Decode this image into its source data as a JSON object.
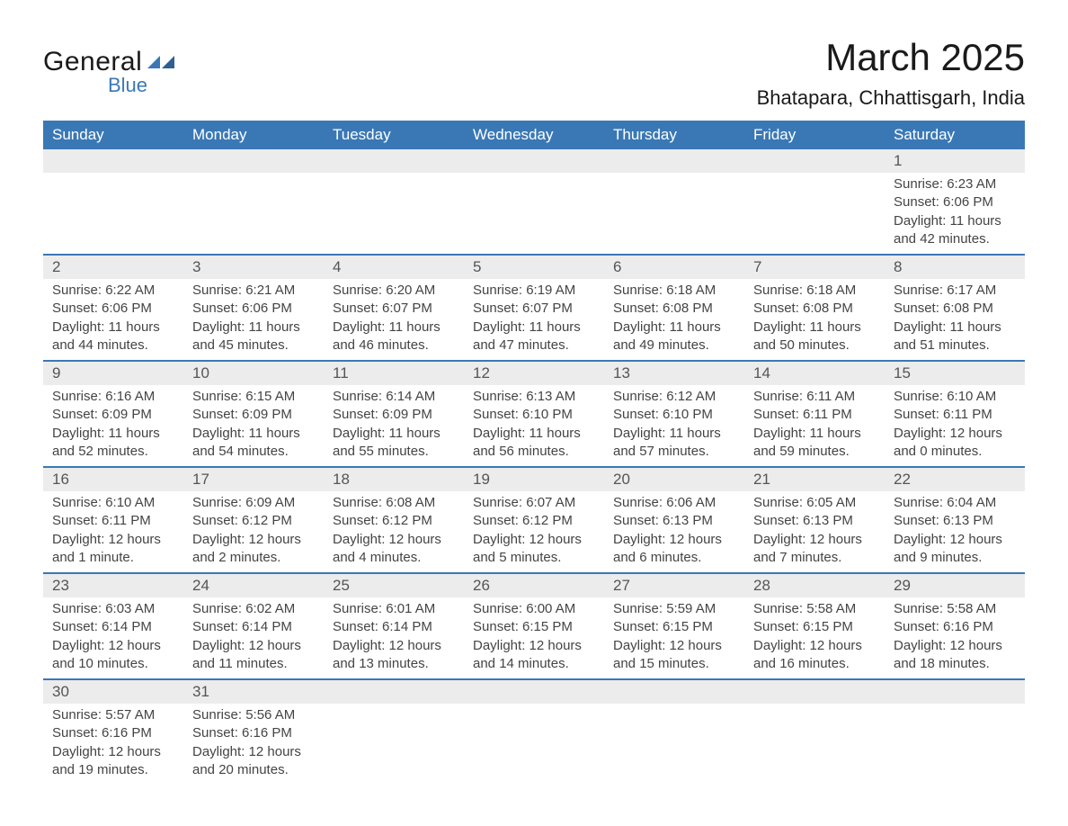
{
  "logo": {
    "text1": "General",
    "text2": "Blue"
  },
  "title": "March 2025",
  "location": "Bhatapara, Chhattisgarh, India",
  "colors": {
    "header_bg": "#3a78b5",
    "header_text": "#ffffff",
    "daynum_bg": "#ececec",
    "text": "#444444"
  },
  "weekdays": [
    "Sunday",
    "Monday",
    "Tuesday",
    "Wednesday",
    "Thursday",
    "Friday",
    "Saturday"
  ],
  "labels": {
    "sunrise": "Sunrise:",
    "sunset": "Sunset:",
    "daylight": "Daylight:"
  },
  "weeks": [
    [
      null,
      null,
      null,
      null,
      null,
      null,
      {
        "d": "1",
        "sunrise": "6:23 AM",
        "sunset": "6:06 PM",
        "daylight": "11 hours and 42 minutes."
      }
    ],
    [
      {
        "d": "2",
        "sunrise": "6:22 AM",
        "sunset": "6:06 PM",
        "daylight": "11 hours and 44 minutes."
      },
      {
        "d": "3",
        "sunrise": "6:21 AM",
        "sunset": "6:06 PM",
        "daylight": "11 hours and 45 minutes."
      },
      {
        "d": "4",
        "sunrise": "6:20 AM",
        "sunset": "6:07 PM",
        "daylight": "11 hours and 46 minutes."
      },
      {
        "d": "5",
        "sunrise": "6:19 AM",
        "sunset": "6:07 PM",
        "daylight": "11 hours and 47 minutes."
      },
      {
        "d": "6",
        "sunrise": "6:18 AM",
        "sunset": "6:08 PM",
        "daylight": "11 hours and 49 minutes."
      },
      {
        "d": "7",
        "sunrise": "6:18 AM",
        "sunset": "6:08 PM",
        "daylight": "11 hours and 50 minutes."
      },
      {
        "d": "8",
        "sunrise": "6:17 AM",
        "sunset": "6:08 PM",
        "daylight": "11 hours and 51 minutes."
      }
    ],
    [
      {
        "d": "9",
        "sunrise": "6:16 AM",
        "sunset": "6:09 PM",
        "daylight": "11 hours and 52 minutes."
      },
      {
        "d": "10",
        "sunrise": "6:15 AM",
        "sunset": "6:09 PM",
        "daylight": "11 hours and 54 minutes."
      },
      {
        "d": "11",
        "sunrise": "6:14 AM",
        "sunset": "6:09 PM",
        "daylight": "11 hours and 55 minutes."
      },
      {
        "d": "12",
        "sunrise": "6:13 AM",
        "sunset": "6:10 PM",
        "daylight": "11 hours and 56 minutes."
      },
      {
        "d": "13",
        "sunrise": "6:12 AM",
        "sunset": "6:10 PM",
        "daylight": "11 hours and 57 minutes."
      },
      {
        "d": "14",
        "sunrise": "6:11 AM",
        "sunset": "6:11 PM",
        "daylight": "11 hours and 59 minutes."
      },
      {
        "d": "15",
        "sunrise": "6:10 AM",
        "sunset": "6:11 PM",
        "daylight": "12 hours and 0 minutes."
      }
    ],
    [
      {
        "d": "16",
        "sunrise": "6:10 AM",
        "sunset": "6:11 PM",
        "daylight": "12 hours and 1 minute."
      },
      {
        "d": "17",
        "sunrise": "6:09 AM",
        "sunset": "6:12 PM",
        "daylight": "12 hours and 2 minutes."
      },
      {
        "d": "18",
        "sunrise": "6:08 AM",
        "sunset": "6:12 PM",
        "daylight": "12 hours and 4 minutes."
      },
      {
        "d": "19",
        "sunrise": "6:07 AM",
        "sunset": "6:12 PM",
        "daylight": "12 hours and 5 minutes."
      },
      {
        "d": "20",
        "sunrise": "6:06 AM",
        "sunset": "6:13 PM",
        "daylight": "12 hours and 6 minutes."
      },
      {
        "d": "21",
        "sunrise": "6:05 AM",
        "sunset": "6:13 PM",
        "daylight": "12 hours and 7 minutes."
      },
      {
        "d": "22",
        "sunrise": "6:04 AM",
        "sunset": "6:13 PM",
        "daylight": "12 hours and 9 minutes."
      }
    ],
    [
      {
        "d": "23",
        "sunrise": "6:03 AM",
        "sunset": "6:14 PM",
        "daylight": "12 hours and 10 minutes."
      },
      {
        "d": "24",
        "sunrise": "6:02 AM",
        "sunset": "6:14 PM",
        "daylight": "12 hours and 11 minutes."
      },
      {
        "d": "25",
        "sunrise": "6:01 AM",
        "sunset": "6:14 PM",
        "daylight": "12 hours and 13 minutes."
      },
      {
        "d": "26",
        "sunrise": "6:00 AM",
        "sunset": "6:15 PM",
        "daylight": "12 hours and 14 minutes."
      },
      {
        "d": "27",
        "sunrise": "5:59 AM",
        "sunset": "6:15 PM",
        "daylight": "12 hours and 15 minutes."
      },
      {
        "d": "28",
        "sunrise": "5:58 AM",
        "sunset": "6:15 PM",
        "daylight": "12 hours and 16 minutes."
      },
      {
        "d": "29",
        "sunrise": "5:58 AM",
        "sunset": "6:16 PM",
        "daylight": "12 hours and 18 minutes."
      }
    ],
    [
      {
        "d": "30",
        "sunrise": "5:57 AM",
        "sunset": "6:16 PM",
        "daylight": "12 hours and 19 minutes."
      },
      {
        "d": "31",
        "sunrise": "5:56 AM",
        "sunset": "6:16 PM",
        "daylight": "12 hours and 20 minutes."
      },
      null,
      null,
      null,
      null,
      null
    ]
  ]
}
